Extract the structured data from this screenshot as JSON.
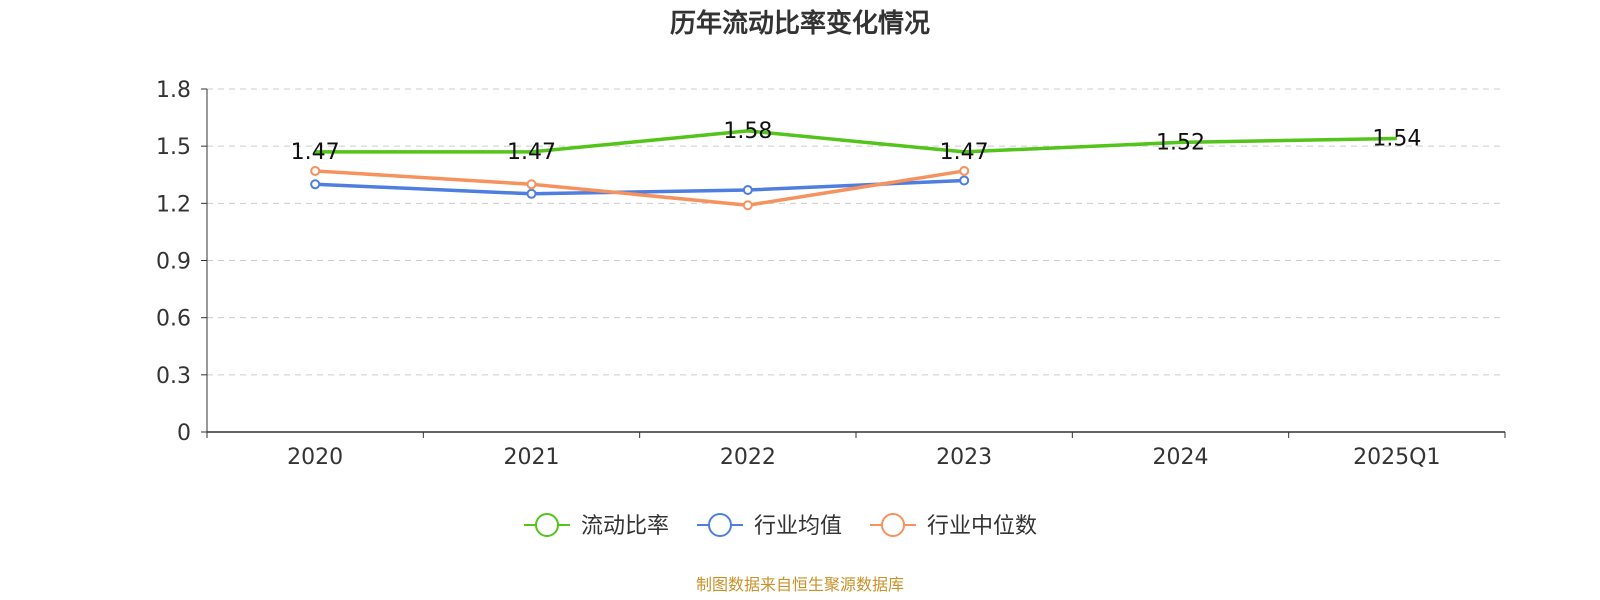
{
  "chart_data": {
    "type": "line",
    "title": "历年流动比率变化情况",
    "categories": [
      "2020",
      "2021",
      "2022",
      "2023",
      "2024",
      "2025Q1"
    ],
    "ylim": [
      0,
      1.8
    ],
    "yticks": [
      "0",
      "0.3",
      "0.6",
      "0.9",
      "1.2",
      "1.5",
      "1.8"
    ],
    "grid": true,
    "legend_position": "bottom-center",
    "series": [
      {
        "name": "流动比率",
        "color": "#52c41a",
        "values": [
          1.47,
          1.47,
          1.58,
          1.47,
          1.52,
          1.54
        ],
        "show_labels": true,
        "labels": [
          "1.47",
          "1.47",
          "1.58",
          "1.47",
          "1.52",
          "1.54"
        ]
      },
      {
        "name": "行业均值",
        "color": "#4e7ee0",
        "values": [
          1.3,
          1.25,
          1.27,
          1.32,
          null,
          null
        ],
        "show_labels": false
      },
      {
        "name": "行业中位数",
        "color": "#f5925e",
        "values": [
          1.37,
          1.3,
          1.19,
          1.37,
          null,
          null
        ],
        "show_labels": false
      }
    ]
  },
  "footer": {
    "source": "制图数据来自恒生聚源数据库",
    "source_color": "#c8922a"
  }
}
